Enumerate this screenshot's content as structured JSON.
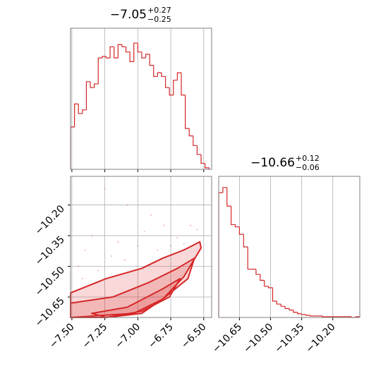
{
  "chart_data": [
    {
      "type": "histogram",
      "title": "−7.05",
      "title_sup": "+0.27",
      "title_sub": "−0.25",
      "color": "#d62728",
      "grid": true,
      "bins": [
        -7.51,
        -7.48,
        -7.45,
        -7.42,
        -7.39,
        -7.36,
        -7.33,
        -7.3,
        -7.27,
        -7.24,
        -7.21,
        -7.18,
        -7.15,
        -7.12,
        -7.09,
        -7.06,
        -7.03,
        -7.0,
        -6.97,
        -6.94,
        -6.91,
        -6.88,
        -6.85,
        -6.82,
        -6.79,
        -6.76,
        -6.73,
        -6.7,
        -6.67,
        -6.64,
        -6.61,
        -6.58,
        -6.55,
        -6.52,
        -6.49,
        -6.46
      ],
      "values": [
        57,
        88,
        75,
        80,
        118,
        110,
        115,
        150,
        152,
        150,
        165,
        150,
        168,
        165,
        158,
        145,
        170,
        158,
        150,
        155,
        140,
        125,
        130,
        125,
        110,
        100,
        120,
        130,
        100,
        55,
        45,
        32,
        20,
        8,
        2
      ],
      "xlim": [
        -7.51,
        -6.44
      ],
      "ylim": [
        0,
        190
      ],
      "xticks": [
        -7.5,
        -7.25,
        -7,
        -6.75,
        -6.5
      ]
    },
    {
      "type": "scatter",
      "color": "#d62728",
      "grid": true,
      "x": [
        -7.25,
        -7.08,
        -6.9,
        -6.8,
        -7.35,
        -7.4,
        -7.15,
        -6.95,
        -6.7,
        -6.6,
        -7.45,
        -7.2,
        -7.0,
        -6.85,
        -6.55,
        -7.3,
        -6.75,
        -7.1,
        -6.65,
        -7.42
      ],
      "y": [
        -10.12,
        -10.2,
        -10.25,
        -10.3,
        -10.35,
        -10.42,
        -10.38,
        -10.33,
        -10.36,
        -10.3,
        -10.5,
        -10.45,
        -10.4,
        -10.42,
        -10.32,
        -10.52,
        -10.4,
        -10.47,
        -10.39,
        -10.56
      ],
      "contours": [
        {
          "x": [
            -7.51,
            -7.24,
            -6.97,
            -6.81,
            -6.65,
            -6.53,
            -6.52,
            -6.65,
            -6.81,
            -6.97,
            -7.24,
            -7.51
          ],
          "y": [
            -10.63,
            -10.56,
            -10.51,
            -10.46,
            -10.42,
            -10.38,
            -10.41,
            -10.55,
            -10.66,
            -10.73,
            -10.75,
            -10.75
          ]
        },
        {
          "x": [
            -7.51,
            -7.19,
            -6.92,
            -6.7,
            -6.57,
            -6.62,
            -6.81,
            -7.03,
            -7.51
          ],
          "y": [
            -10.68,
            -10.65,
            -10.58,
            -10.51,
            -10.46,
            -10.56,
            -10.66,
            -10.73,
            -10.75
          ]
        },
        {
          "x": [
            -7.35,
            -7.08,
            -6.81,
            -6.68,
            -6.76,
            -6.97,
            -7.24
          ],
          "y": [
            -10.73,
            -10.7,
            -10.61,
            -10.56,
            -10.65,
            -10.72,
            -10.75
          ]
        }
      ],
      "xlim": [
        -7.51,
        -6.44
      ],
      "ylim": [
        -10.75,
        -10.06
      ],
      "xticks": [
        {
          "value": -7.5,
          "label": "−7.50"
        },
        {
          "value": -7.25,
          "label": "−7.25"
        },
        {
          "value": -7,
          "label": "−7.00"
        },
        {
          "value": -6.75,
          "label": "−6.75"
        },
        {
          "value": -6.5,
          "label": "−6.50"
        }
      ],
      "yticks": [
        {
          "value": -10.2,
          "label": "−10.20"
        },
        {
          "value": -10.35,
          "label": "−10.35"
        },
        {
          "value": -10.5,
          "label": "−10.50"
        },
        {
          "value": -10.65,
          "label": "−10.65"
        }
      ]
    },
    {
      "type": "histogram",
      "title": "−10.66",
      "title_sup": "+0.12",
      "title_sub": "−0.06",
      "color": "#d62728",
      "grid": true,
      "bins": [
        -10.75,
        -10.73,
        -10.71,
        -10.69,
        -10.67,
        -10.65,
        -10.63,
        -10.61,
        -10.59,
        -10.57,
        -10.55,
        -10.53,
        -10.51,
        -10.49,
        -10.47,
        -10.45,
        -10.43,
        -10.41,
        -10.39,
        -10.37,
        -10.35,
        -10.33,
        -10.31,
        -10.29,
        -10.27,
        -10.25,
        -10.23,
        -10.21,
        -10.19,
        -10.17,
        -10.15,
        -10.13,
        -10.11,
        -10.09,
        -10.07
      ],
      "values": [
        168,
        175,
        150,
        125,
        122,
        112,
        95,
        65,
        65,
        58,
        50,
        42,
        40,
        22,
        18,
        15,
        12,
        10,
        7,
        5,
        4,
        3,
        2,
        2,
        2,
        1,
        1,
        1,
        1,
        1,
        1,
        1,
        0,
        1
      ],
      "xlim": [
        -10.75,
        -10.07
      ],
      "ylim": [
        0,
        190
      ],
      "xticks": [
        {
          "value": -10.65,
          "label": "−10.65"
        },
        {
          "value": -10.5,
          "label": "−10.50"
        },
        {
          "value": -10.35,
          "label": "−10.35"
        },
        {
          "value": -10.2,
          "label": "−10.20"
        }
      ]
    }
  ]
}
